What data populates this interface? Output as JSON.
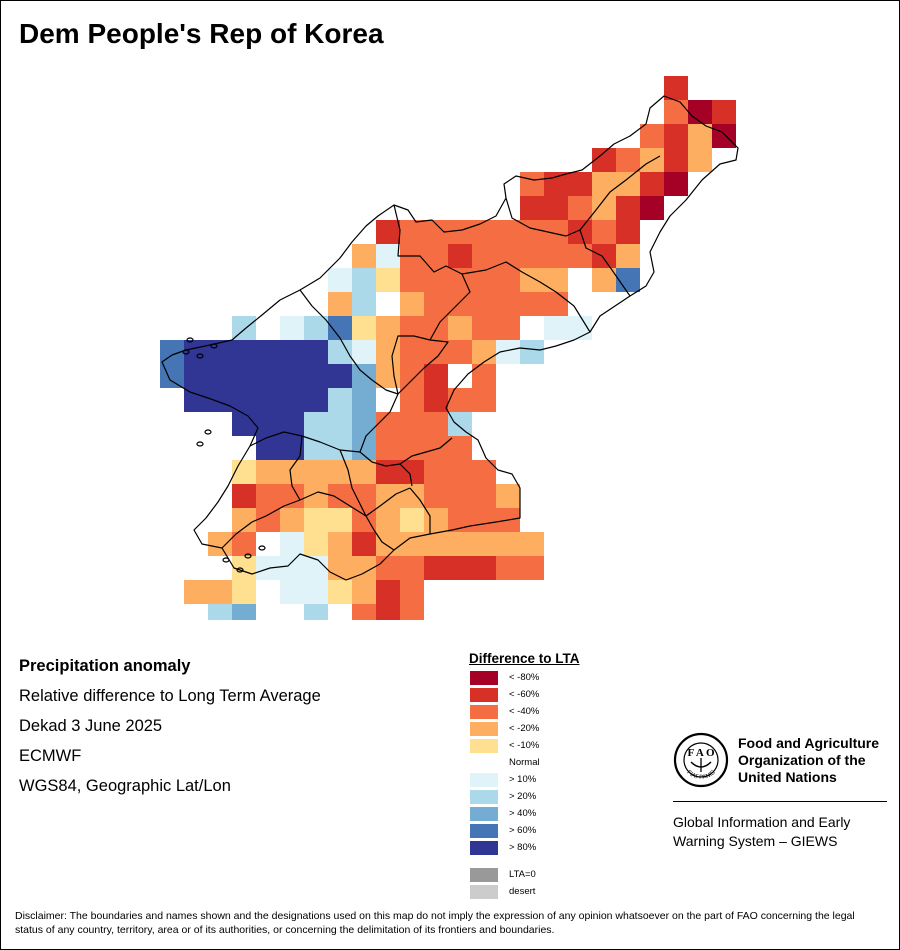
{
  "title": "Dem People's Rep of Korea",
  "info": {
    "heading": "Precipitation anomaly",
    "line1": "Relative difference to Long Term Average",
    "line2": "Dekad 3 June 2025",
    "line3": "ECMWF",
    "line4": "WGS84, Geographic Lat/Lon"
  },
  "legend": {
    "title": "Difference to LTA",
    "items": [
      {
        "label": "< -80%",
        "color": "#a50026"
      },
      {
        "label": "< -60%",
        "color": "#d73027"
      },
      {
        "label": "< -40%",
        "color": "#f46d43"
      },
      {
        "label": "< -20%",
        "color": "#fdae61"
      },
      {
        "label": "< -10%",
        "color": "#fee090"
      },
      {
        "label": "Normal",
        "color": "#ffffff"
      },
      {
        "label": "> 10%",
        "color": "#e0f3f8"
      },
      {
        "label": "> 20%",
        "color": "#abd9e9"
      },
      {
        "label": "> 40%",
        "color": "#74add1"
      },
      {
        "label": "> 60%",
        "color": "#4575b4"
      },
      {
        "label": "> 80%",
        "color": "#313695"
      },
      {
        "label": "LTA=0",
        "color": "#999999"
      },
      {
        "label": "desert",
        "color": "#cccccc"
      }
    ]
  },
  "map": {
    "classes": [
      "#ffffff",
      "#fee090",
      "#fdae61",
      "#f46d43",
      "#d73027",
      "#a50026",
      "#e0f3f8",
      "#abd9e9",
      "#74add1",
      "#4575b4",
      "#313695"
    ],
    "grid": [
      "...............55.....",
      "...............445....",
      ".............4445.....",
      "...........34434......",
      "...........3333.......",
      ".......4334...........",
      "......334434.........",
      "...........333.........",
      "..........33333.......",
      ".........333333.......",
      ".........33333........",
      "........3333333.......",
      "........333333........",
      "........3333..........",
      ".......33333...........",
      ".......3333...........",
      "......3333............",
      "......333.............",
      "......33..............",
      "........................"
    ]
  },
  "fao": {
    "org_name": "Food and Agriculture\nOrganization of the\nUnited Nations",
    "logo_text": "FIAT PANIS",
    "system": "Global Information and Early\nWarning System – GIEWS"
  },
  "disclaimer": "Disclaimer: The boundaries and names shown and the designations used on this map do not imply the expression of any opinion whatsoever on the part of FAO concerning the legal status of any country, territory, area or of its authorities, or concerning the delimitation of its frontiers and boundaries."
}
